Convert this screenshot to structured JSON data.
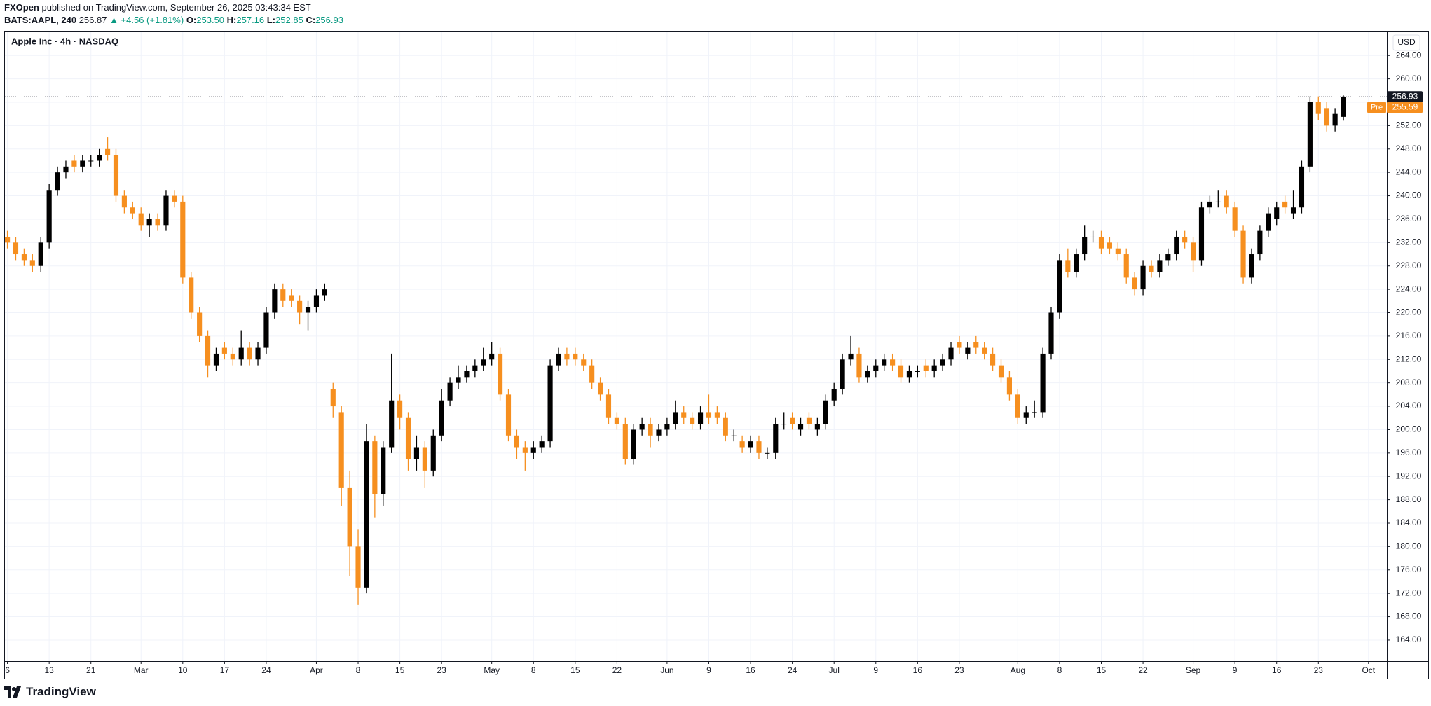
{
  "header": {
    "publisher": "FXOpen",
    "published": "published on TradingView.com, September 26, 2025 03:43:34 EST",
    "symbol": "BATS:AAPL, 240",
    "price": "256.87",
    "change": "▲ +4.56 (+1.81%)",
    "ohlc": [
      {
        "label": "O:",
        "value": "253.50"
      },
      {
        "label": "H:",
        "value": "257.16"
      },
      {
        "label": "L:",
        "value": "252.85"
      },
      {
        "label": "C:",
        "value": "256.93"
      }
    ]
  },
  "footer": {
    "brand": "TradingView"
  },
  "chart_data": {
    "type": "candlestick",
    "title": "Apple Inc · 4h · NASDAQ",
    "currency": "USD",
    "up_color": "#000000",
    "down_color": "#f68f1f",
    "grid": true,
    "x": [
      0,
      1,
      2,
      3,
      4,
      5,
      6,
      7,
      8,
      9,
      10,
      11,
      12,
      13,
      14,
      15,
      16,
      17,
      18,
      19,
      20,
      21,
      22,
      23,
      24,
      25,
      26,
      27,
      28,
      29,
      30,
      31,
      32,
      33,
      34,
      35,
      36,
      37,
      38,
      39,
      40,
      41,
      42,
      43,
      44,
      45,
      46,
      47,
      48,
      49,
      50,
      51,
      52,
      53,
      54,
      55,
      56,
      57,
      58,
      59,
      60,
      61,
      62,
      63,
      64,
      65,
      66,
      67,
      68,
      69,
      70,
      71,
      72,
      73,
      74,
      75,
      76,
      77,
      78,
      79,
      80,
      81,
      82,
      83,
      84,
      85,
      86,
      87,
      88,
      89,
      90,
      91,
      92,
      93,
      94,
      95,
      96,
      97,
      98,
      99,
      100,
      101,
      102,
      103,
      104,
      105,
      106,
      107,
      108,
      109,
      110,
      111,
      112,
      113,
      114,
      115,
      116,
      117,
      118,
      119,
      120,
      121,
      122,
      123,
      124,
      125,
      126,
      127,
      128,
      129,
      130,
      131,
      132,
      133,
      134,
      135,
      136,
      137,
      138,
      139,
      140,
      141,
      142,
      143,
      144,
      145,
      146,
      147,
      148,
      149,
      150,
      151,
      152,
      153,
      154,
      155,
      156,
      157,
      158,
      159,
      160
    ],
    "open": [
      233,
      232,
      230,
      229,
      228,
      232,
      241,
      244,
      246,
      245,
      246,
      246,
      248,
      247,
      240,
      238,
      237,
      235,
      236,
      235,
      240,
      239,
      226,
      220,
      216,
      211,
      214,
      213,
      212,
      214,
      212,
      214,
      220,
      224,
      223,
      222,
      220,
      221,
      223,
      207,
      203,
      190,
      180,
      173,
      198,
      189,
      197,
      205,
      202,
      195,
      197,
      193,
      199,
      205,
      208,
      209,
      210,
      211,
      212,
      213,
      206,
      199,
      197,
      196,
      197,
      198,
      211,
      213,
      213,
      212,
      211,
      208,
      206,
      202,
      201,
      195,
      200,
      201,
      199,
      200,
      201,
      203,
      202,
      201,
      203,
      203,
      202,
      199,
      198,
      197,
      198,
      196,
      196,
      201,
      202,
      200,
      202,
      200,
      201,
      205,
      207,
      212,
      213,
      209,
      210,
      211,
      212,
      211,
      209,
      210,
      211,
      210,
      211,
      212,
      215,
      213,
      215,
      214,
      213,
      211,
      209,
      206,
      202,
      203,
      203,
      213,
      220,
      229,
      227,
      230,
      233,
      233,
      232,
      231,
      230,
      226,
      224,
      228,
      227,
      229,
      230,
      233,
      232,
      229,
      238,
      239,
      240,
      238,
      234,
      226,
      230,
      234,
      236,
      239,
      237,
      238,
      245,
      256,
      255,
      252,
      253.5
    ],
    "high": [
      234,
      233,
      231,
      230,
      233,
      242,
      245,
      246,
      247,
      247,
      247,
      248,
      250,
      248,
      241,
      239,
      238,
      237,
      237,
      241,
      241,
      240,
      227,
      221,
      217,
      214,
      215,
      214,
      217,
      215,
      215,
      221,
      225,
      225,
      224,
      223,
      222,
      224,
      225,
      208,
      204,
      193,
      183,
      201,
      199,
      198,
      213,
      206,
      203,
      199,
      198,
      200,
      207,
      209,
      211,
      211,
      212,
      214,
      215,
      214,
      207,
      200,
      198,
      198,
      199,
      212,
      214,
      214,
      214,
      213,
      212,
      209,
      207,
      203,
      202,
      201,
      202,
      202,
      201,
      202,
      205,
      204,
      203,
      204,
      206,
      204,
      203,
      200,
      199,
      199,
      199,
      197,
      202,
      203,
      203,
      202,
      203,
      202,
      206,
      208,
      213,
      216,
      214,
      211,
      212,
      213,
      213,
      212,
      211,
      211,
      212,
      212,
      213,
      215,
      216,
      215,
      216,
      215,
      214,
      212,
      210,
      207,
      204,
      205,
      214,
      221,
      230,
      231,
      231,
      235,
      234,
      234,
      233,
      232,
      231,
      227,
      229,
      229,
      230,
      231,
      234,
      234,
      233,
      239,
      240,
      241,
      241,
      239,
      235,
      231,
      235,
      238,
      239,
      240,
      241,
      246,
      257,
      257,
      256,
      255,
      257.16
    ],
    "low": [
      231,
      229,
      228,
      227,
      227,
      231,
      240,
      243,
      244,
      244,
      245,
      245,
      246,
      239,
      237,
      236,
      234,
      233,
      234,
      234,
      238,
      225,
      219,
      215,
      209,
      210,
      212,
      211,
      211,
      211,
      211,
      213,
      219,
      221,
      221,
      218,
      217,
      220,
      222,
      202,
      187,
      175,
      170,
      172,
      185,
      187,
      196,
      200,
      193,
      193,
      190,
      192,
      198,
      204,
      207,
      208,
      209,
      210,
      211,
      205,
      198,
      195,
      193,
      195,
      196,
      197,
      210,
      211,
      211,
      210,
      207,
      205,
      201,
      200,
      194,
      194,
      199,
      197,
      198,
      199,
      200,
      201,
      200,
      200,
      201,
      201,
      198,
      198,
      196,
      196,
      195,
      195,
      195,
      200,
      200,
      199,
      200,
      199,
      200,
      204,
      206,
      211,
      208,
      208,
      209,
      210,
      210,
      208,
      208,
      209,
      209,
      209,
      210,
      211,
      213,
      212,
      213,
      212,
      210,
      208,
      205,
      201,
      201,
      202,
      202,
      212,
      219,
      226,
      226,
      229,
      232,
      230,
      230,
      229,
      225,
      223,
      223,
      226,
      226,
      228,
      229,
      231,
      227,
      228,
      237,
      238,
      237,
      233,
      225,
      225,
      229,
      233,
      235,
      237,
      236,
      237,
      244,
      253,
      251,
      251,
      252.85
    ],
    "close": [
      232,
      230,
      229,
      228,
      232,
      241,
      244,
      245,
      245,
      246,
      246,
      247,
      247,
      240,
      238,
      237,
      235,
      236,
      235,
      240,
      239,
      226,
      220,
      216,
      211,
      213,
      213,
      212,
      214,
      212,
      214,
      220,
      224,
      222,
      222,
      220,
      221,
      223,
      224,
      204,
      190,
      180,
      173,
      198,
      189,
      197,
      205,
      202,
      195,
      197,
      193,
      199,
      205,
      208,
      209,
      210,
      211,
      212,
      213,
      206,
      199,
      197,
      196,
      197,
      198,
      211,
      213,
      212,
      212,
      211,
      208,
      206,
      202,
      201,
      195,
      200,
      201,
      199,
      200,
      201,
      203,
      202,
      201,
      203,
      202,
      202,
      199,
      199,
      197,
      198,
      196,
      196,
      201,
      201,
      201,
      201,
      201,
      201,
      205,
      207,
      212,
      213,
      209,
      210,
      211,
      212,
      211,
      209,
      210,
      210,
      210,
      211,
      212,
      214,
      214,
      214,
      214,
      213,
      211,
      209,
      206,
      202,
      203,
      203,
      213,
      220,
      229,
      227,
      230,
      233,
      233,
      231,
      231,
      230,
      226,
      224,
      228,
      227,
      229,
      230,
      233,
      232,
      229,
      238,
      239,
      239,
      238,
      234,
      226,
      230,
      234,
      237,
      238,
      238,
      238,
      245,
      256,
      254,
      252,
      254,
      256.93
    ],
    "xlim": [
      -0.3,
      165.2
    ],
    "xticks": [
      {
        "value": 0,
        "label": "6"
      },
      {
        "value": 5,
        "label": "13"
      },
      {
        "value": 10,
        "label": "21"
      },
      {
        "value": 16,
        "label": "Mar"
      },
      {
        "value": 21,
        "label": "10"
      },
      {
        "value": 26,
        "label": "17"
      },
      {
        "value": 31,
        "label": "24"
      },
      {
        "value": 37,
        "label": "Apr"
      },
      {
        "value": 42,
        "label": "8"
      },
      {
        "value": 47,
        "label": "15"
      },
      {
        "value": 52,
        "label": "23"
      },
      {
        "value": 58,
        "label": "May"
      },
      {
        "value": 63,
        "label": "8"
      },
      {
        "value": 68,
        "label": "15"
      },
      {
        "value": 73,
        "label": "22"
      },
      {
        "value": 79,
        "label": "Jun"
      },
      {
        "value": 84,
        "label": "9"
      },
      {
        "value": 89,
        "label": "16"
      },
      {
        "value": 94,
        "label": "24"
      },
      {
        "value": 99,
        "label": "Jul"
      },
      {
        "value": 104,
        "label": "9"
      },
      {
        "value": 109,
        "label": "16"
      },
      {
        "value": 114,
        "label": "23"
      },
      {
        "value": 121,
        "label": "Aug"
      },
      {
        "value": 126,
        "label": "8"
      },
      {
        "value": 131,
        "label": "15"
      },
      {
        "value": 136,
        "label": "22"
      },
      {
        "value": 142,
        "label": "Sep"
      },
      {
        "value": 147,
        "label": "9"
      },
      {
        "value": 152,
        "label": "16"
      },
      {
        "value": 157,
        "label": "23"
      },
      {
        "value": 163,
        "label": "Oct"
      }
    ],
    "ylim": [
      160.4,
      268.1
    ],
    "yticks": [
      {
        "value": 164,
        "label": "164.00"
      },
      {
        "value": 168,
        "label": "168.00"
      },
      {
        "value": 172,
        "label": "172.00"
      },
      {
        "value": 176,
        "label": "176.00"
      },
      {
        "value": 180,
        "label": "180.00"
      },
      {
        "value": 184,
        "label": "184.00"
      },
      {
        "value": 188,
        "label": "188.00"
      },
      {
        "value": 192,
        "label": "192.00"
      },
      {
        "value": 196,
        "label": "196.00"
      },
      {
        "value": 200,
        "label": "200.00"
      },
      {
        "value": 204,
        "label": "204.00"
      },
      {
        "value": 208,
        "label": "208.00"
      },
      {
        "value": 212,
        "label": "212.00"
      },
      {
        "value": 216,
        "label": "216.00"
      },
      {
        "value": 220,
        "label": "220.00"
      },
      {
        "value": 224,
        "label": "224.00"
      },
      {
        "value": 228,
        "label": "228.00"
      },
      {
        "value": 232,
        "label": "232.00"
      },
      {
        "value": 236,
        "label": "236.00"
      },
      {
        "value": 240,
        "label": "240.00"
      },
      {
        "value": 244,
        "label": "244.00"
      },
      {
        "value": 248,
        "label": "248.00"
      },
      {
        "value": 252,
        "label": "252.00"
      },
      {
        "value": 256,
        "label": "256.00"
      },
      {
        "value": 260,
        "label": "260.00"
      },
      {
        "value": 264,
        "label": "264.00"
      }
    ],
    "last_price": {
      "value": 256.93,
      "label": "256.93"
    },
    "pre_market": {
      "tag": "Pre",
      "value": 255.59,
      "label": "255.59"
    }
  }
}
